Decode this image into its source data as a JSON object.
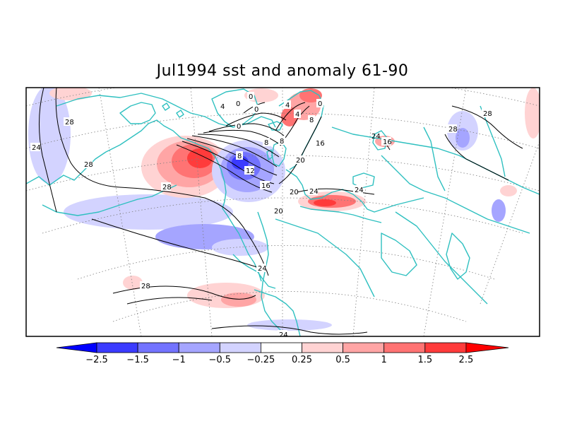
{
  "title": "Jul1994 sst and anomaly 61-90",
  "colorbar": {
    "ticks": [
      "-2.5",
      "-1.5",
      "-1",
      "-0.5",
      "-0.25",
      "0.25",
      "0.5",
      "1",
      "1.5",
      "2.5"
    ],
    "colors": [
      "#0000ff",
      "#3b3bff",
      "#7373ff",
      "#a5a5ff",
      "#d3d3ff",
      "#ffffff",
      "#ffd3d3",
      "#ffa5a5",
      "#ff7373",
      "#ff3b3b",
      "#ff0000"
    ]
  },
  "contour_labels": [
    "28",
    "24",
    "28",
    "28",
    "24",
    "28",
    "24",
    "8",
    "12",
    "16",
    "20",
    "20",
    "4",
    "0",
    "0",
    "0",
    "4",
    "8",
    "8",
    "4",
    "0",
    "0",
    "8",
    "16",
    "20",
    "24",
    "24",
    "16",
    "24",
    "28",
    "28"
  ],
  "colors": {
    "coastline": "#2fc0c0",
    "contour": "#000000",
    "grid": "#7f7f7f",
    "frame": "#000000"
  }
}
